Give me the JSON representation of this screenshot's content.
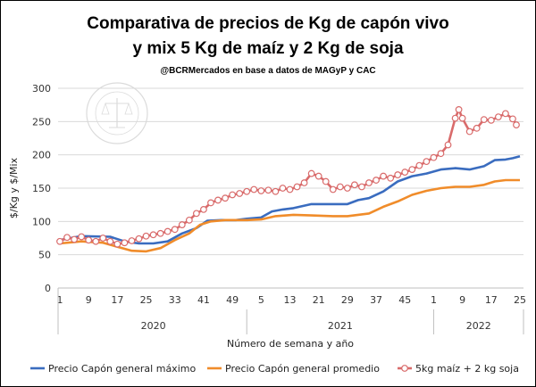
{
  "chart_data": {
    "type": "line",
    "title_line1": "Comparativa de precios de Kg de capón vivo",
    "title_line2": "y mix 5 Kg de maíz y 2 Kg de soja",
    "subtitle": "@BCRMercados  en base a datos de MAGyP y CAC",
    "xlabel": "Número de semana y año",
    "ylabel": "$/Kg y $/Mix",
    "ylim": [
      0,
      300
    ],
    "yticks": [
      0,
      50,
      100,
      150,
      200,
      250,
      300
    ],
    "x_start_index": 0,
    "x_end_index": 128,
    "x_ticks": [
      {
        "index": 0,
        "label": "1"
      },
      {
        "index": 8,
        "label": "9"
      },
      {
        "index": 16,
        "label": "17"
      },
      {
        "index": 24,
        "label": "25"
      },
      {
        "index": 32,
        "label": "33"
      },
      {
        "index": 40,
        "label": "41"
      },
      {
        "index": 48,
        "label": "49"
      },
      {
        "index": 56,
        "label": "5"
      },
      {
        "index": 64,
        "label": "13"
      },
      {
        "index": 72,
        "label": "21"
      },
      {
        "index": 80,
        "label": "29"
      },
      {
        "index": 88,
        "label": "37"
      },
      {
        "index": 96,
        "label": "45"
      },
      {
        "index": 104,
        "label": "1"
      },
      {
        "index": 112,
        "label": "9"
      },
      {
        "index": 120,
        "label": "17"
      },
      {
        "index": 128,
        "label": "25"
      }
    ],
    "years": [
      {
        "label": "2020",
        "from": 0,
        "to": 52
      },
      {
        "label": "2021",
        "from": 52,
        "to": 104
      },
      {
        "label": "2022",
        "from": 104,
        "to": 129
      }
    ],
    "grid": true,
    "legend_position": "bottom",
    "series": [
      {
        "name": "Precio Capón general máximo",
        "color": "#3a6cbf",
        "marker": "none",
        "points": [
          [
            0,
            72
          ],
          [
            6,
            78
          ],
          [
            14,
            77
          ],
          [
            18,
            70
          ],
          [
            22,
            67
          ],
          [
            26,
            67
          ],
          [
            30,
            70
          ],
          [
            34,
            82
          ],
          [
            38,
            90
          ],
          [
            41,
            101
          ],
          [
            45,
            102
          ],
          [
            49,
            102
          ],
          [
            52,
            104
          ],
          [
            56,
            106
          ],
          [
            59,
            115
          ],
          [
            62,
            118
          ],
          [
            65,
            120
          ],
          [
            70,
            126
          ],
          [
            76,
            126
          ],
          [
            80,
            126
          ],
          [
            83,
            132
          ],
          [
            86,
            135
          ],
          [
            90,
            145
          ],
          [
            94,
            160
          ],
          [
            98,
            168
          ],
          [
            102,
            172
          ],
          [
            106,
            178
          ],
          [
            110,
            180
          ],
          [
            114,
            178
          ],
          [
            118,
            183
          ],
          [
            121,
            192
          ],
          [
            124,
            193
          ],
          [
            126,
            195
          ],
          [
            128,
            198
          ]
        ]
      },
      {
        "name": "Precio Capón general promedio",
        "color": "#f08c2a",
        "marker": "none",
        "points": [
          [
            0,
            67
          ],
          [
            6,
            70
          ],
          [
            12,
            68
          ],
          [
            16,
            62
          ],
          [
            20,
            56
          ],
          [
            24,
            55
          ],
          [
            28,
            60
          ],
          [
            32,
            72
          ],
          [
            36,
            82
          ],
          [
            39,
            95
          ],
          [
            42,
            100
          ],
          [
            46,
            102
          ],
          [
            52,
            102
          ],
          [
            56,
            103
          ],
          [
            60,
            108
          ],
          [
            65,
            110
          ],
          [
            70,
            109
          ],
          [
            76,
            108
          ],
          [
            80,
            108
          ],
          [
            86,
            112
          ],
          [
            90,
            122
          ],
          [
            94,
            130
          ],
          [
            98,
            140
          ],
          [
            102,
            146
          ],
          [
            106,
            150
          ],
          [
            110,
            152
          ],
          [
            114,
            152
          ],
          [
            118,
            155
          ],
          [
            121,
            160
          ],
          [
            124,
            162
          ],
          [
            128,
            162
          ]
        ]
      },
      {
        "name": "5kg maíz + 2 kg soja",
        "color": "#d96b6b",
        "marker": "circle",
        "points": [
          [
            0,
            70
          ],
          [
            2,
            76
          ],
          [
            4,
            73
          ],
          [
            6,
            77
          ],
          [
            8,
            72
          ],
          [
            10,
            70
          ],
          [
            12,
            75
          ],
          [
            14,
            70
          ],
          [
            16,
            66
          ],
          [
            18,
            68
          ],
          [
            20,
            71
          ],
          [
            22,
            74
          ],
          [
            24,
            78
          ],
          [
            26,
            80
          ],
          [
            28,
            82
          ],
          [
            30,
            85
          ],
          [
            32,
            88
          ],
          [
            34,
            95
          ],
          [
            36,
            102
          ],
          [
            38,
            112
          ],
          [
            40,
            118
          ],
          [
            42,
            128
          ],
          [
            44,
            132
          ],
          [
            46,
            135
          ],
          [
            48,
            140
          ],
          [
            50,
            142
          ],
          [
            52,
            145
          ],
          [
            54,
            148
          ],
          [
            56,
            146
          ],
          [
            58,
            147
          ],
          [
            60,
            145
          ],
          [
            62,
            150
          ],
          [
            64,
            148
          ],
          [
            66,
            152
          ],
          [
            68,
            158
          ],
          [
            70,
            172
          ],
          [
            72,
            168
          ],
          [
            74,
            160
          ],
          [
            76,
            148
          ],
          [
            78,
            152
          ],
          [
            80,
            150
          ],
          [
            82,
            155
          ],
          [
            84,
            152
          ],
          [
            86,
            158
          ],
          [
            88,
            162
          ],
          [
            90,
            168
          ],
          [
            92,
            165
          ],
          [
            94,
            170
          ],
          [
            96,
            174
          ],
          [
            98,
            178
          ],
          [
            100,
            184
          ],
          [
            102,
            190
          ],
          [
            104,
            196
          ],
          [
            106,
            202
          ],
          [
            108,
            215
          ],
          [
            110,
            255
          ],
          [
            111,
            268
          ],
          [
            112,
            255
          ],
          [
            114,
            235
          ],
          [
            116,
            240
          ],
          [
            118,
            253
          ],
          [
            120,
            252
          ],
          [
            122,
            257
          ],
          [
            124,
            262
          ],
          [
            126,
            254
          ],
          [
            127,
            245
          ]
        ]
      }
    ]
  }
}
